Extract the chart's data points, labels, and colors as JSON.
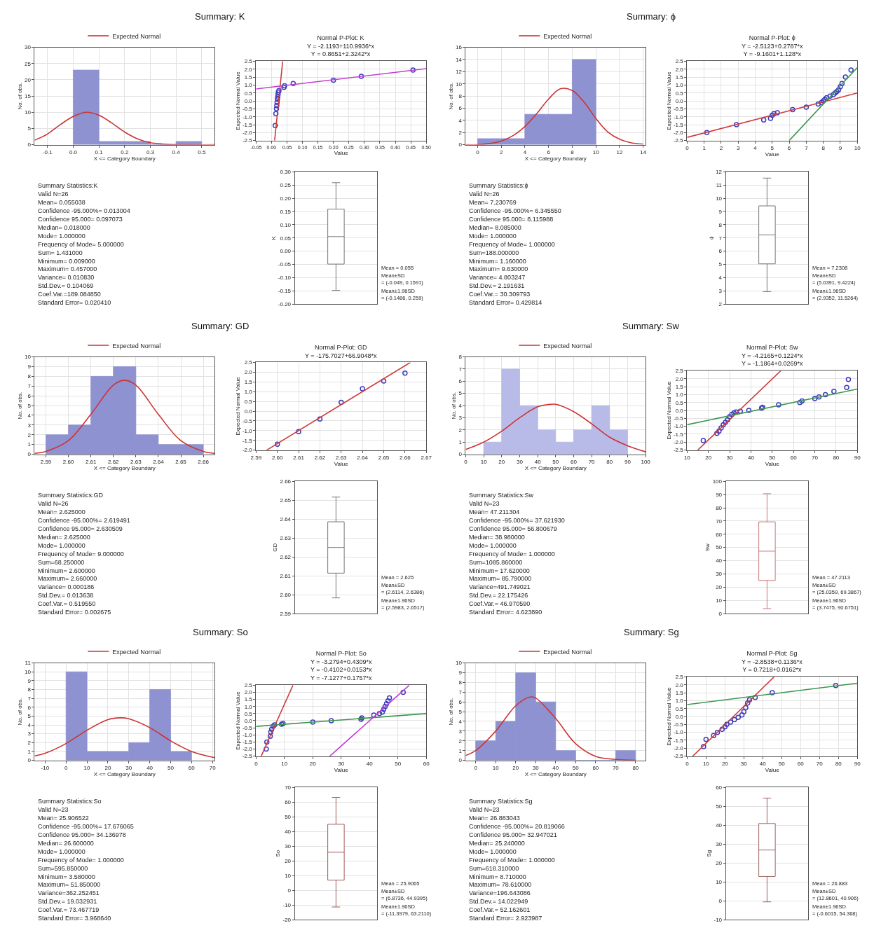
{
  "chart_data": [
    {
      "type": "histogram",
      "xlabel": "X <= Category Boundary",
      "ylabel": "No. of obs.",
      "bins": [
        0,
        0.1,
        0.2,
        0.3,
        0.4,
        0.5
      ],
      "values": [
        23,
        1,
        1,
        0,
        1
      ],
      "color": "#8f92d0",
      "series": [
        {
          "type": "line",
          "name": "Expected Normal",
          "color": "#cc3333",
          "x": [
            -0.15,
            -0.1,
            -0.05,
            0,
            0.05,
            0.1,
            0.15,
            0.2,
            0.25,
            0.3,
            0.35,
            0.4,
            0.55
          ],
          "values": [
            1.4,
            3.3,
            6.2,
            8.7,
            10,
            9.1,
            6.7,
            3.9,
            1.8,
            0.6,
            0.2,
            0,
            0
          ]
        }
      ],
      "xlim": [
        -0.15,
        0.55
      ],
      "xticks": [
        -0.1,
        {
          "value": 0,
          "label": "0.0"
        },
        0.1,
        0.2,
        0.3,
        0.4,
        0.5
      ],
      "ylim": [
        0,
        30
      ],
      "yticks": [
        0,
        5,
        10,
        15,
        20,
        25,
        30
      ],
      "grid": true,
      "legend": "top"
    },
    {
      "type": "scatter",
      "title": "Normal P-Plot: K",
      "subtitle": "Y = -2.1193+110.9936*x\nY = 0.8651+2.3242*x",
      "xlabel": "Value",
      "ylabel": "Expected Normal Value",
      "series": [
        {
          "marker": "circle",
          "color": "#3d3dc0",
          "x": [
            0.012,
            0.014,
            0.016,
            0.017,
            0.018,
            0.019,
            0.02,
            0.021,
            0.022,
            0.024,
            0.04,
            0.042,
            0.07,
            0.2,
            0.29,
            0.457
          ],
          "values": [
            -1.55,
            -0.8,
            -0.5,
            -0.3,
            -0.1,
            0.1,
            0.25,
            0.4,
            0.55,
            0.65,
            0.85,
            0.95,
            1.1,
            1.3,
            1.55,
            1.95
          ]
        },
        {
          "type": "line",
          "marker": "none",
          "color": "#d03c3c",
          "x": [
            0.01,
            0.036
          ],
          "values": [
            -2.5,
            2.5
          ]
        },
        {
          "type": "line",
          "marker": "none",
          "color": "#c040d0",
          "x": [
            -0.05,
            0.5
          ],
          "values": [
            0.75,
            2.03
          ]
        }
      ],
      "xlim": [
        -0.05,
        0.5
      ],
      "xticks": [
        -0.05,
        {
          "value": 0,
          "label": "0.00"
        },
        0.05,
        {
          "value": 0.1,
          "label": "0.10"
        },
        0.15,
        {
          "value": 0.2,
          "label": "0.20"
        },
        0.25,
        {
          "value": 0.3,
          "label": "0.30"
        },
        0.35,
        {
          "value": 0.4,
          "label": "0.40"
        },
        0.45,
        {
          "value": 0.5,
          "label": "0.50"
        }
      ],
      "ylim": [
        -2.5,
        2.5
      ],
      "yticks": [
        -2.5,
        {
          "value": -2,
          "label": "-2.0"
        },
        -1.5,
        {
          "value": -1,
          "label": "-1.0"
        },
        -0.5,
        {
          "value": 0,
          "label": "0.0"
        },
        0.5,
        {
          "value": 1,
          "label": "1.0"
        },
        1.5,
        {
          "value": 2,
          "label": "2.0"
        },
        2.5
      ],
      "grid": true
    },
    {
      "type": "box",
      "ylabel": "K",
      "categories": [
        null
      ],
      "color": "#777777",
      "boxes": [
        {
          "low": -0.1486,
          "q1": -0.049,
          "median": 0.055,
          "q3": 0.1591,
          "high": 0.259
        }
      ],
      "ylim": [
        -0.2,
        0.3
      ],
      "yticks": [
        {
          "value": -0.2,
          "label": "-0.20"
        },
        -0.15,
        {
          "value": -0.1,
          "label": "-0.10"
        },
        -0.05,
        {
          "value": 0,
          "label": "0.00"
        },
        0.05,
        {
          "value": 0.1,
          "label": "0.10"
        },
        0.15,
        {
          "value": 0.2,
          "label": "0.20"
        },
        0.25,
        {
          "value": 0.3,
          "label": "0.30"
        }
      ],
      "grid": true,
      "annotations": [
        "Mean = 0.055",
        "Mean±SD\n= (-0.049, 0.1591)",
        "Mean±1.96SD\n= (-0.1486, 0.259)"
      ]
    },
    {
      "type": "histogram",
      "xlabel": "X <= Category Boundary",
      "ylabel": "No. of obs.",
      "bins": [
        0,
        2,
        4,
        6,
        8,
        10
      ],
      "values": [
        1,
        1,
        5,
        5,
        14
      ],
      "color": "#8f92d0",
      "series": [
        {
          "type": "line",
          "name": "Expected Normal",
          "color": "#cc3333",
          "x": [
            -1,
            0,
            1,
            2,
            3,
            4,
            5,
            6,
            7,
            8,
            9,
            10,
            11,
            12,
            13,
            14
          ],
          "values": [
            0,
            0,
            0.2,
            0.6,
            1.5,
            3,
            5.1,
            7.5,
            9.2,
            8.9,
            7,
            4.3,
            2.1,
            0.9,
            0.3,
            0.1
          ]
        }
      ],
      "xlim": [
        -1,
        14.2
      ],
      "xticks": [
        0,
        2,
        4,
        6,
        8,
        10,
        12,
        14
      ],
      "ylim": [
        0,
        16
      ],
      "yticks": [
        0,
        2,
        4,
        6,
        8,
        10,
        12,
        14,
        16
      ],
      "grid": true,
      "legend": "top"
    },
    {
      "type": "scatter",
      "title": "Normal P-Plot: ϕ",
      "subtitle": "Y = -2.5123+0.2787*x\nY = -9.1601+1.128*x",
      "xlabel": "Value",
      "ylabel": "Expected Normal Value",
      "series": [
        {
          "marker": "circle",
          "color": "#3d3dc0",
          "x": [
            1.16,
            2.9,
            4.5,
            4.9,
            5,
            5.1,
            5.3,
            6.2,
            7,
            7.7,
            7.9,
            8,
            8.1,
            8.2,
            8.4,
            8.6,
            8.7,
            8.8,
            8.9,
            9,
            9.1,
            9.3,
            9.63
          ],
          "values": [
            -2,
            -1.5,
            -1.2,
            -1.1,
            -0.9,
            -0.8,
            -0.75,
            -0.55,
            -0.4,
            -0.2,
            -0.1,
            0,
            0.1,
            0.2,
            0.3,
            0.4,
            0.5,
            0.6,
            0.7,
            0.9,
            1.1,
            1.5,
            1.95
          ]
        },
        {
          "type": "line",
          "marker": "none",
          "color": "#d03c3c",
          "x": [
            0,
            10
          ],
          "values": [
            -2.3,
            0.5
          ]
        },
        {
          "type": "line",
          "marker": "none",
          "color": "#3c9650",
          "x": [
            6,
            10
          ],
          "values": [
            -2.5,
            2.1
          ]
        }
      ],
      "xlim": [
        0,
        10
      ],
      "xticks": [
        0,
        1,
        2,
        3,
        4,
        5,
        6,
        7,
        8,
        9,
        10
      ],
      "ylim": [
        -2.5,
        2.5
      ],
      "yticks": [
        -2.5,
        {
          "value": -2,
          "label": "-2.0"
        },
        -1.5,
        {
          "value": -1,
          "label": "-1.0"
        },
        -0.5,
        {
          "value": 0,
          "label": "0.0"
        },
        0.5,
        {
          "value": 1,
          "label": "1.0"
        },
        1.5,
        {
          "value": 2,
          "label": "2.0"
        },
        2.5
      ],
      "grid": true
    },
    {
      "type": "box",
      "ylabel": "ϕ",
      "categories": [
        null
      ],
      "color": "#777777",
      "boxes": [
        {
          "low": 2.9352,
          "q1": 5.0391,
          "median": 7.2308,
          "q3": 9.4224,
          "high": 11.5264
        }
      ],
      "ylim": [
        2,
        12
      ],
      "yticks": [
        2,
        3,
        4,
        5,
        6,
        7,
        8,
        9,
        10,
        11,
        12
      ],
      "grid": true,
      "annotations": [
        "Mean = 7.2308",
        "Mean±SD\n= (5.0391, 9.4224)",
        "Mean±1.96SD\n= (2.9352, 11.5264)"
      ]
    },
    {
      "type": "histogram",
      "xlabel": "X <= Category Boundary",
      "ylabel": "No. of obs.",
      "bins": [
        2.59,
        2.6,
        2.61,
        2.62,
        2.63,
        2.64,
        2.65,
        2.66
      ],
      "values": [
        2,
        3,
        8,
        9,
        2,
        1,
        1
      ],
      "color": "#8f92d0",
      "series": [
        {
          "type": "line",
          "name": "Expected Normal",
          "color": "#cc3333",
          "x": [
            2.585,
            2.59,
            2.6,
            2.61,
            2.62,
            2.625,
            2.63,
            2.64,
            2.65,
            2.66,
            2.665
          ],
          "values": [
            0.1,
            0.3,
            1.4,
            4.1,
            7.1,
            7.6,
            7.1,
            4.1,
            1.4,
            0.3,
            0.1
          ]
        }
      ],
      "xlim": [
        2.585,
        2.665
      ],
      "xticks": [
        2.59,
        {
          "value": 2.6,
          "label": "2.60"
        },
        2.61,
        2.62,
        2.63,
        2.64,
        2.65,
        2.66
      ],
      "ylim": [
        0,
        10
      ],
      "yticks": [
        0,
        1,
        2,
        3,
        4,
        5,
        6,
        7,
        8,
        9,
        10
      ],
      "grid": true,
      "legend": "top"
    },
    {
      "type": "scatter",
      "title": "Normal P-Plot: GD",
      "subtitle": "Y = -175.7027+66.9048*x",
      "xlabel": "Value",
      "ylabel": "Expected Normal Value",
      "series": [
        {
          "marker": "circle",
          "color": "#3d3dc0",
          "x": [
            2.6,
            2.61,
            2.62,
            2.63,
            2.64,
            2.65,
            2.66
          ],
          "values": [
            -1.7,
            -1.05,
            -0.4,
            0.45,
            1.15,
            1.55,
            1.95
          ]
        },
        {
          "type": "line",
          "marker": "none",
          "color": "#d03c3c",
          "x": [
            2.595,
            2.6625
          ],
          "values": [
            -2,
            2.5
          ]
        }
      ],
      "xlim": [
        2.59,
        2.67
      ],
      "xticks": [
        2.59,
        {
          "value": 2.6,
          "label": "2.60"
        },
        2.61,
        2.62,
        2.63,
        2.64,
        2.65,
        2.66,
        2.67
      ],
      "ylim": [
        -2,
        2.5
      ],
      "yticks": [
        {
          "value": -2,
          "label": "-2.0"
        },
        -1.5,
        {
          "value": -1,
          "label": "-1.0"
        },
        -0.5,
        {
          "value": 0,
          "label": "0.0"
        },
        0.5,
        {
          "value": 1,
          "label": "1.0"
        },
        1.5,
        {
          "value": 2,
          "label": "2.0"
        },
        2.5
      ],
      "grid": true
    },
    {
      "type": "box",
      "ylabel": "GD",
      "categories": [
        null
      ],
      "color": "#777777",
      "boxes": [
        {
          "low": 2.5983,
          "q1": 2.6114,
          "median": 2.625,
          "q3": 2.6386,
          "high": 2.6517
        }
      ],
      "ylim": [
        2.59,
        2.66
      ],
      "yticks": [
        2.59,
        {
          "value": 2.6,
          "label": "2.60"
        },
        2.61,
        2.62,
        2.63,
        2.64,
        2.65,
        2.66
      ],
      "grid": true,
      "annotations": [
        "Mean = 2.625",
        "Mean±SD\n= (2.6114, 2.6386)",
        "Mean±1.96SD\n= (2.5983, 2.6517)"
      ]
    },
    {
      "type": "histogram",
      "xlabel": "X <= Category Boundary",
      "ylabel": "No. of obs.",
      "bins": [
        10,
        20,
        30,
        40,
        50,
        60,
        70,
        80,
        90
      ],
      "values": [
        1,
        7,
        4,
        2,
        1,
        2,
        4,
        2
      ],
      "color": "#b8bbe8",
      "series": [
        {
          "type": "line",
          "name": "Expected Normal",
          "color": "#cc3333",
          "x": [
            0,
            10,
            20,
            30,
            40,
            47,
            50,
            60,
            70,
            80,
            90,
            100
          ],
          "values": [
            0.4,
            1,
            1.9,
            3,
            3.9,
            4.1,
            4.1,
            3.5,
            2.5,
            1.4,
            0.7,
            0.2
          ]
        }
      ],
      "xlim": [
        0,
        100
      ],
      "xticks": [
        0,
        10,
        20,
        30,
        40,
        50,
        60,
        70,
        80,
        90,
        100
      ],
      "ylim": [
        0,
        8
      ],
      "yticks": [
        0,
        1,
        2,
        3,
        4,
        5,
        6,
        7,
        8
      ],
      "grid": true,
      "legend": "top"
    },
    {
      "type": "scatter",
      "title": "Normal P-Plot: Sw",
      "subtitle": "Y = -4.2165+0.1224*x\nY = -1.1864+0.0269*x",
      "xlabel": "Value",
      "ylabel": "Expected Normal Value",
      "series": [
        {
          "marker": "circle",
          "color": "#3d3dc0",
          "x": [
            17.6,
            24,
            25,
            26,
            27,
            28,
            29,
            30,
            31,
            32,
            33,
            35,
            39,
            45,
            45.5,
            53,
            63,
            64,
            70,
            72,
            75,
            79,
            85,
            85.8
          ],
          "values": [
            -1.9,
            -1.45,
            -1.3,
            -1.1,
            -0.9,
            -0.75,
            -0.6,
            -0.4,
            -0.25,
            -0.15,
            -0.1,
            -0.05,
            0,
            0.15,
            0.2,
            0.35,
            0.5,
            0.6,
            0.75,
            0.85,
            1,
            1.2,
            1.45,
            1.95
          ]
        },
        {
          "type": "line",
          "marker": "none",
          "color": "#d03c3c",
          "x": [
            15,
            54
          ],
          "values": [
            -2.5,
            2.5
          ]
        },
        {
          "type": "line",
          "marker": "none",
          "color": "#3c9650",
          "x": [
            10,
            90
          ],
          "values": [
            -0.9,
            1.35
          ]
        }
      ],
      "xlim": [
        10,
        90
      ],
      "xticks": [
        10,
        20,
        30,
        40,
        50,
        60,
        70,
        80,
        90
      ],
      "ylim": [
        -2.5,
        2.5
      ],
      "yticks": [
        -2.5,
        {
          "value": -2,
          "label": "-2.0"
        },
        -1.5,
        {
          "value": -1,
          "label": "-1.0"
        },
        -0.5,
        {
          "value": 0,
          "label": "0.0"
        },
        0.5,
        {
          "value": 1,
          "label": "1.0"
        },
        1.5,
        {
          "value": 2,
          "label": "2.0"
        },
        2.5
      ],
      "grid": true
    },
    {
      "type": "box",
      "ylabel": "Sw",
      "categories": [
        null
      ],
      "color": "#c87878",
      "boxes": [
        {
          "low": 3.7475,
          "q1": 25.0359,
          "median": 47.2113,
          "q3": 69.3867,
          "high": 90.6751
        }
      ],
      "ylim": [
        0,
        100
      ],
      "yticks": [
        0,
        10,
        20,
        30,
        40,
        50,
        60,
        70,
        80,
        90,
        100
      ],
      "grid": true,
      "annotations": [
        "Mean = 47.2113",
        "Mean±SD\n= (25.0359, 69.3867)",
        "Mean±1.96SD\n= (3.7475, 90.6751)"
      ]
    },
    {
      "type": "histogram",
      "xlabel": "X <= Category Boundary",
      "ylabel": "No. of obs.",
      "bins": [
        0,
        10,
        20,
        30,
        40,
        50,
        60
      ],
      "values": [
        10,
        1,
        1,
        2,
        8,
        1
      ],
      "color": "#8f92d0",
      "series": [
        {
          "type": "line",
          "name": "Expected Normal",
          "color": "#cc3333",
          "x": [
            -15,
            -10,
            0,
            10,
            20,
            26,
            30,
            40,
            50,
            60,
            71
          ],
          "values": [
            0.5,
            0.8,
            1.9,
            3.4,
            4.6,
            4.8,
            4.7,
            3.7,
            2.2,
            1,
            0.3
          ]
        }
      ],
      "xlim": [
        -15,
        71
      ],
      "xticks": [
        -10,
        0,
        10,
        20,
        30,
        40,
        50,
        60,
        70
      ],
      "ylim": [
        0,
        11
      ],
      "yticks": [
        0,
        1,
        2,
        3,
        4,
        5,
        6,
        7,
        8,
        9,
        10,
        11
      ],
      "grid": true,
      "legend": "top"
    },
    {
      "type": "scatter",
      "title": "Normal P-Plot: So",
      "subtitle": "Y = -3.2794+0.4309*x\nY = -0.4102+0.0153*x\nY = -7.1277+0.1757*x",
      "xlabel": "Value",
      "ylabel": "Expected Normal Value",
      "series": [
        {
          "marker": "circle",
          "color": "#3d3dc0",
          "x": [
            3.6,
            3.8,
            5,
            5.2,
            5.5,
            6,
            6.5,
            9,
            9.5,
            20,
            26.5,
            37,
            37.3,
            41.5,
            43.5,
            44.5,
            45,
            45.5,
            46,
            46.5,
            47,
            51.85
          ],
          "values": [
            -2,
            -1.5,
            -1.1,
            -0.8,
            -0.6,
            -0.4,
            -0.3,
            -0.25,
            -0.2,
            -0.1,
            0,
            0.1,
            0.2,
            0.4,
            0.5,
            0.6,
            0.8,
            1,
            1.2,
            1.4,
            1.6,
            2
          ]
        },
        {
          "type": "line",
          "marker": "none",
          "color": "#d03c3c",
          "x": [
            1.8,
            13
          ],
          "values": [
            -2.5,
            2.5
          ]
        },
        {
          "type": "line",
          "marker": "none",
          "color": "#3c9650",
          "x": [
            0,
            60
          ],
          "values": [
            -0.4,
            0.5
          ]
        },
        {
          "type": "line",
          "marker": "none",
          "color": "#c040d0",
          "x": [
            26,
            54
          ],
          "values": [
            -2.5,
            2.5
          ]
        }
      ],
      "xlim": [
        0,
        60
      ],
      "xticks": [
        0,
        10,
        20,
        30,
        40,
        50,
        60
      ],
      "ylim": [
        -2.5,
        2.5
      ],
      "yticks": [
        -2.5,
        {
          "value": -2,
          "label": "-2.0"
        },
        -1.5,
        {
          "value": -1,
          "label": "-1.0"
        },
        -0.5,
        {
          "value": 0,
          "label": "0.0"
        },
        0.5,
        {
          "value": 1,
          "label": "1.0"
        },
        1.5,
        {
          "value": 2,
          "label": "2.0"
        },
        2.5
      ],
      "grid": true
    },
    {
      "type": "box",
      "ylabel": "So",
      "categories": [
        null
      ],
      "color": "#a05a5a",
      "boxes": [
        {
          "low": -11.3979,
          "q1": 6.8736,
          "median": 25.9065,
          "q3": 44.9395,
          "high": 63.211
        }
      ],
      "ylim": [
        -20,
        70
      ],
      "yticks": [
        -20,
        -10,
        0,
        10,
        20,
        30,
        40,
        50,
        60,
        70
      ],
      "grid": true,
      "annotations": [
        "Mean = 25.9065",
        "Mean±SD\n= (6.8736, 44.9395)",
        "Mean±1.96SD\n= (-11.3979, 63.2110)"
      ]
    },
    {
      "type": "histogram",
      "xlabel": "X <= Category Boundary",
      "ylabel": "No. of obs.",
      "bins": [
        0,
        10,
        20,
        30,
        40,
        50,
        60,
        70,
        80
      ],
      "values": [
        2,
        4,
        9,
        6,
        1,
        0,
        0,
        1
      ],
      "color": "#8f92d0",
      "series": [
        {
          "type": "line",
          "name": "Expected Normal",
          "color": "#cc3333",
          "x": [
            -5,
            0,
            10,
            20,
            27,
            30,
            40,
            50,
            60,
            70,
            80
          ],
          "values": [
            0.5,
            1,
            3,
            5.6,
            6.5,
            6.4,
            4.3,
            1.7,
            0.4,
            0.1,
            0
          ]
        }
      ],
      "xlim": [
        -5,
        85
      ],
      "xticks": [
        0,
        10,
        20,
        30,
        40,
        50,
        60,
        70,
        80
      ],
      "ylim": [
        0,
        10
      ],
      "yticks": [
        0,
        1,
        2,
        3,
        4,
        5,
        6,
        7,
        8,
        9,
        10
      ],
      "grid": true,
      "legend": "top"
    },
    {
      "type": "scatter",
      "title": "Normal P-Plot: Sg",
      "subtitle": "Y = -2.8538+0.1136*x\nY = 0.7218+0.0162*x",
      "xlabel": "Value",
      "ylabel": "Expected Normal Value",
      "series": [
        {
          "marker": "circle",
          "color": "#3d3dc0",
          "x": [
            8.7,
            10,
            14,
            16,
            18.5,
            20,
            21,
            23,
            25,
            27,
            29,
            30,
            31,
            32,
            33,
            36,
            45,
            78.6
          ],
          "values": [
            -1.9,
            -1.45,
            -1.2,
            -1,
            -0.8,
            -0.65,
            -0.5,
            -0.35,
            -0.2,
            -0.05,
            0.1,
            0.3,
            0.55,
            0.85,
            1.05,
            1.2,
            1.5,
            1.95
          ]
        },
        {
          "type": "line",
          "marker": "none",
          "color": "#d03c3c",
          "x": [
            3,
            46
          ],
          "values": [
            -2.5,
            2.5
          ]
        },
        {
          "type": "line",
          "marker": "none",
          "color": "#3c9650",
          "x": [
            0,
            90
          ],
          "values": [
            0.75,
            2.1
          ]
        }
      ],
      "xlim": [
        0,
        90
      ],
      "xticks": [
        0,
        10,
        20,
        30,
        40,
        50,
        60,
        70,
        80,
        90
      ],
      "ylim": [
        -2.5,
        2.5
      ],
      "yticks": [
        -2.5,
        {
          "value": -2,
          "label": "-2.0"
        },
        -1.5,
        {
          "value": -1,
          "label": "-1.0"
        },
        -0.5,
        {
          "value": 0,
          "label": "0.0"
        },
        0.5,
        {
          "value": 1,
          "label": "1.0"
        },
        1.5,
        {
          "value": 2,
          "label": "2.0"
        },
        2.5
      ],
      "grid": true
    },
    {
      "type": "box",
      "ylabel": "Sg",
      "categories": [
        null
      ],
      "color": "#a06060",
      "boxes": [
        {
          "low": -0.6015,
          "q1": 12.8601,
          "median": 26.883,
          "q3": 40.906,
          "high": 54.368
        }
      ],
      "ylim": [
        -10,
        60
      ],
      "yticks": [
        -10,
        0,
        10,
        20,
        30,
        40,
        50,
        60
      ],
      "grid": true,
      "annotations": [
        "Mean = 26.883",
        "Mean±SD\n= (12.8601, 40.906)",
        "Mean±1.96SD\n= (-0.6015, 54.368)"
      ]
    },
    {
      "type": "other",
      "title": "Summary: K",
      "annotations": [
        "Summary Statistics:K",
        "Valid N=26",
        "Mean= 0.055038",
        "Confidence -95.000%= 0.013004",
        "Confidence 95.000= 0.097073",
        "Median= 0.018000",
        "Mode= 1.000000",
        "Frequency of Mode= 5.000000",
        "Sum= 1.431000",
        "Minimum= 0.009000",
        "Maximum= 0.457000",
        "Variance= 0.010830",
        "Std.Dev.= 0.104069",
        "Coef.Var.=189.084850",
        "Standard Error= 0.020410"
      ]
    },
    {
      "type": "other",
      "title": "Summary: ϕ",
      "annotations": [
        "Summary Statistics:ϕ",
        "Valid N=26",
        "Mean= 7.230769",
        "Confidence -95.000%= 6.345550",
        "Confidence 95.000= 8.115988",
        "Median= 8.085000",
        "Mode= 1.000000",
        "Frequency of Mode= 1.000000",
        "Sum=188.000000",
        "Minimum= 1.160000",
        "Maximum= 9.630000",
        "Variance= 4.803247",
        "Std.Dev.= 2.191631",
        "Coef.Var.= 30.309793",
        "Standard Error= 0.429814"
      ]
    },
    {
      "type": "other",
      "title": "Summary: GD",
      "annotations": [
        "Summary Statistics:GD",
        "Valid N=26",
        "Mean= 2.625000",
        "Confidence -95.000%= 2.619491",
        "Confidence 95.000= 2.630509",
        "Median= 2.625000",
        "Mode= 1.000000",
        "Frequency of Mode= 9.000000",
        "Sum=68.250000",
        "Minimum= 2.600000",
        "Maximum= 2.660000",
        "Variance= 0.000186",
        "Std.Dev.= 0.013638",
        "Coef.Var.= 0.519550",
        "Standard Error= 0.002675"
      ]
    },
    {
      "type": "other",
      "title": "Summary: Sw",
      "annotations": [
        "Summary Statistics:Sw",
        "Valid N=23",
        "Mean= 47.211304",
        "Confidence -95.000%= 37.621930",
        "Confidence 95.000= 56.800679",
        "Median= 38.980000",
        "Mode= 1.000000",
        "Frequency of Mode= 1.000000",
        "Sum=1085.860000",
        "Minimum= 17.620000",
        "Maximum= 85.790000",
        "Variance=491.749021",
        "Std.Dev.= 22.175426",
        "Coef.Var.= 46.970590",
        "Standard Error= 4.623890"
      ]
    },
    {
      "type": "other",
      "title": "Summary: So",
      "annotations": [
        "Summary Statistics:So",
        "Valid N=23",
        "Mean= 25.906522",
        "Confidence -95.000%= 17.676065",
        "Confidence 95.000= 34.136978",
        "Median= 26.600000",
        "Mode= 1.000000",
        "Frequency of Mode= 1.000000",
        "Sum=595.850000",
        "Minimum= 3.580000",
        "Maximum= 51.850000",
        "Variance=362.252451",
        "Std.Dev.= 19.032931",
        "Coef.Var.= 73.467719",
        "Standard Error= 3.968640"
      ]
    },
    {
      "type": "other",
      "title": "Summary: Sg",
      "annotations": [
        "Summary Statistics:Sg",
        "Valid N=23",
        "Mean= 26.883043",
        "Confidence -95.000%= 20.819066",
        "Confidence 95.000= 32.947021",
        "Median= 25.240000",
        "Mode= 1.000000",
        "Frequency of Mode= 1.000000",
        "Sum=618.310000",
        "Minimum= 8.710000",
        "Maximum= 78.610000",
        "Variance=196.643086",
        "Std.Dev.= 14.022949",
        "Coef.Var.= 52.162601",
        "Standard Error= 2.923987"
      ]
    }
  ]
}
